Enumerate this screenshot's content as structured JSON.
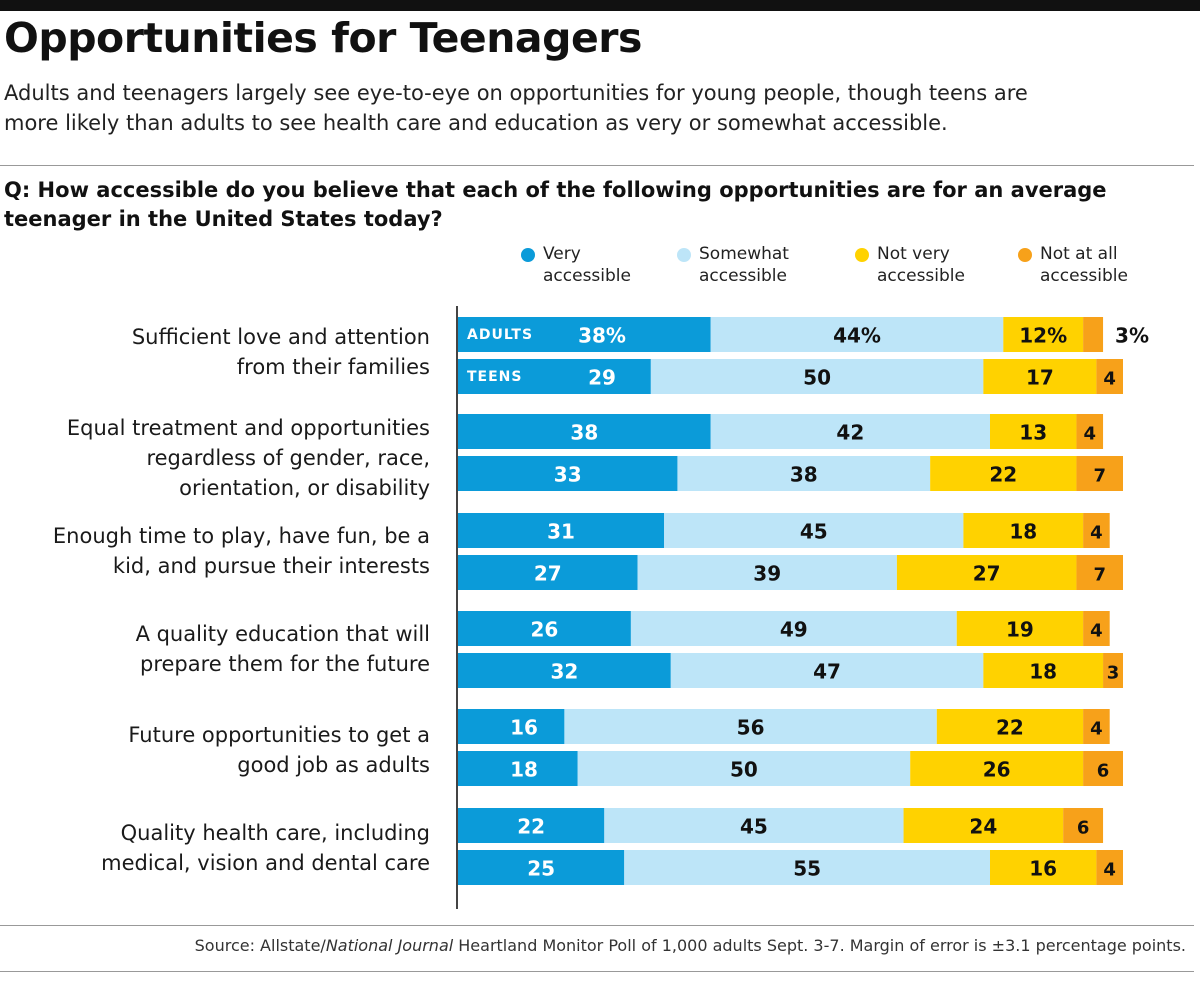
{
  "title": "Opportunities for Teenagers",
  "subtitle": "Adults and teenagers largely see eye-to-eye on opportunities for young people, though teens are more likely than adults to see health care and education as very or somewhat accessible.",
  "question": "Q: How accessible do you believe that each of the following opportunities are for an average teenager in the United States today?",
  "source": {
    "prefix": "Source: Allstate/",
    "italic": "National Journal",
    "suffix": " Heartland Monitor Poll of 1,000 adults Sept. 3-7. Margin of error is ±3.1 percentage points."
  },
  "colors": {
    "very": "#0b9bd9",
    "somewhat": "#bde5f8",
    "not_very": "#ffd200",
    "not_at_all": "#f7a11a"
  },
  "chart_data": {
    "type": "bar",
    "stacked": true,
    "orientation": "horizontal",
    "xlim": [
      0,
      100
    ],
    "unit": "%",
    "grid": false,
    "legend_placement": "top-right",
    "legend": [
      {
        "key": "very",
        "label_line1": "Very",
        "label_line2": "accessible"
      },
      {
        "key": "somewhat",
        "label_line1": "Somewhat",
        "label_line2": "accessible"
      },
      {
        "key": "not_very",
        "label_line1": "Not very",
        "label_line2": "accessible"
      },
      {
        "key": "not_at_all",
        "label_line1": "Not at all",
        "label_line2": "accessible"
      }
    ],
    "group_tags": {
      "adults": "ADULTS",
      "teens": "TEENS"
    },
    "categories": [
      {
        "label_lines": [
          "Sufficient love and attention",
          "from their families"
        ],
        "adults": [
          38,
          44,
          12,
          3
        ],
        "teens": [
          29,
          50,
          17,
          4
        ],
        "adults_labels": [
          "38%",
          "44%",
          "12%",
          "3%"
        ]
      },
      {
        "label_lines": [
          "Equal treatment and opportunities",
          "regardless of gender, race,",
          "orientation, or disability"
        ],
        "adults": [
          38,
          42,
          13,
          4
        ],
        "teens": [
          33,
          38,
          22,
          7
        ]
      },
      {
        "label_lines": [
          "Enough time to play, have fun, be a",
          "kid, and pursue their interests"
        ],
        "adults": [
          31,
          45,
          18,
          4
        ],
        "teens": [
          27,
          39,
          27,
          7
        ]
      },
      {
        "label_lines": [
          "A quality education that will",
          "prepare them for the future"
        ],
        "adults": [
          26,
          49,
          19,
          4
        ],
        "teens": [
          32,
          47,
          18,
          3
        ]
      },
      {
        "label_lines": [
          "Future opportunities to get a",
          "good job as adults"
        ],
        "adults": [
          16,
          56,
          22,
          4
        ],
        "teens": [
          18,
          50,
          26,
          6
        ]
      },
      {
        "label_lines": [
          "Quality health care, including",
          "medical, vision and dental care"
        ],
        "adults": [
          22,
          45,
          24,
          6
        ],
        "teens": [
          25,
          55,
          16,
          4
        ]
      }
    ]
  }
}
